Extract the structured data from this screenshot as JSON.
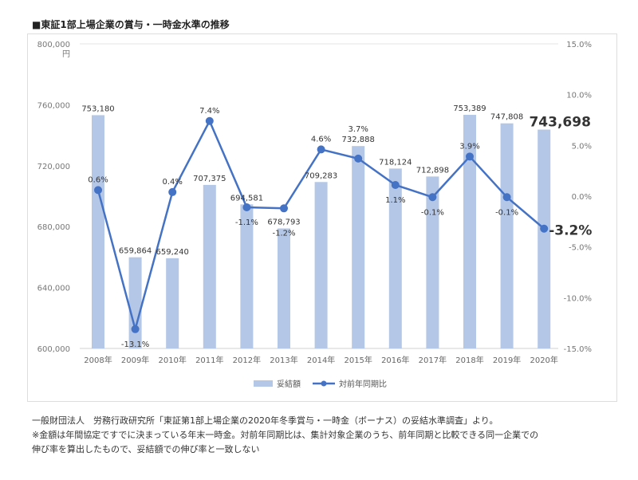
{
  "title": "■東証1部上場企業の賞与・一時金水準の推移",
  "chart_data": {
    "type": "bar+line",
    "categories": [
      "2008年",
      "2009年",
      "2010年",
      "2011年",
      "2012年",
      "2013年",
      "2014年",
      "2015年",
      "2016年",
      "2017年",
      "2018年",
      "2019年",
      "2020年"
    ],
    "series": [
      {
        "name": "妥結額",
        "type": "bar",
        "axis": "left",
        "color": "#b4c7e7",
        "values": [
          753180,
          659864,
          659240,
          707375,
          694581,
          678793,
          709283,
          732888,
          718124,
          712898,
          753389,
          747808,
          743698
        ],
        "labels": [
          "753,180",
          "659,864",
          "659,240",
          "707,375",
          "694,581",
          "678,793",
          "709,283",
          "732,888",
          "718,124",
          "712,898",
          "753,389",
          "747,808",
          "743,698"
        ]
      },
      {
        "name": "対前年同期比",
        "type": "line",
        "axis": "right",
        "color": "#4472c4",
        "values": [
          0.6,
          -13.1,
          0.4,
          7.4,
          -1.1,
          -1.2,
          4.6,
          3.7,
          1.1,
          -0.1,
          3.9,
          -0.1,
          -3.2
        ],
        "labels": [
          "0.6%",
          "-13.1%",
          "0.4%",
          "7.4%",
          "-1.1%",
          "-1.2%",
          "4.6%",
          "3.7%",
          "1.1%",
          "-0.1%",
          "3.9%",
          "-0.1%",
          "-3.2%"
        ]
      }
    ],
    "left_axis": {
      "range": [
        600000,
        800000
      ],
      "unit": "円",
      "ticks": [
        "600,000",
        "640,000",
        "680,000",
        "720,000",
        "760,000",
        "800,000"
      ]
    },
    "right_axis": {
      "range": [
        -15,
        15
      ],
      "ticks": [
        "-15.0%",
        "-10.0%",
        "-5.0%",
        "0.0%",
        "5.0%",
        "10.0%",
        "15.0%"
      ]
    },
    "grid": false,
    "legend": "bottom"
  },
  "notes": [
    "一般財団法人　労務行政研究所「東証第1部上場企業の2020年冬季賞与・一時金（ボーナス）の妥結水準調査」より。",
    "※金額は年間協定ですでに決まっている年末一時金。対前年同期比は、集計対象企業のうち、前年同期と比較できる同一企業での",
    "伸び率を算出したもので、妥結額での伸び率と一致しない"
  ]
}
